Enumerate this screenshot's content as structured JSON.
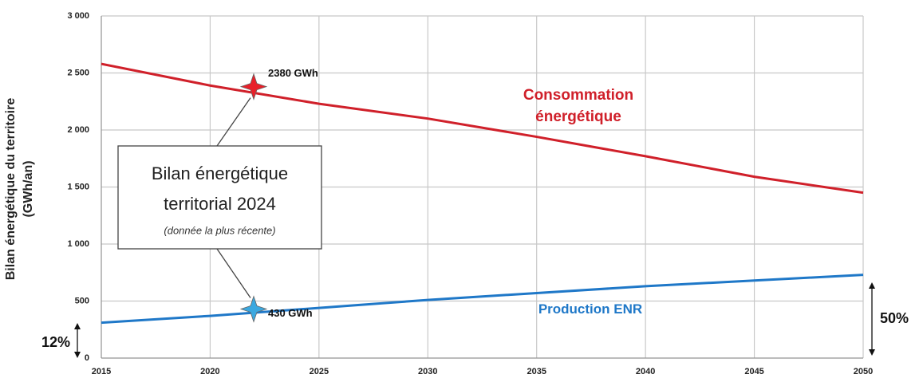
{
  "chart_data": {
    "type": "line",
    "ylabel": "Bilan énergétique du territoire (GWh/an)",
    "x": [
      2015,
      2020,
      2025,
      2030,
      2035,
      2040,
      2045,
      2050
    ],
    "series": [
      {
        "name": "Consommation énergétique",
        "color": "#d0202a",
        "values": [
          2580,
          2390,
          2230,
          2100,
          1940,
          1770,
          1590,
          1450
        ]
      },
      {
        "name": "Production ENR",
        "color": "#1f78c8",
        "values": [
          310,
          370,
          440,
          510,
          570,
          630,
          680,
          730
        ]
      }
    ],
    "xlim": [
      2015,
      2050
    ],
    "xticks": [
      2015,
      2020,
      2025,
      2030,
      2035,
      2040,
      2045,
      2050
    ],
    "ylim": [
      0,
      3000
    ],
    "yticks": [
      0,
      500,
      {
        "value": 1000,
        "label": "1 000"
      },
      {
        "value": 1500,
        "label": "1 500"
      },
      {
        "value": 2000,
        "label": "2 000"
      },
      {
        "value": 2500,
        "label": "2 500"
      },
      {
        "value": 3000,
        "label": "3 000"
      }
    ],
    "grid": true,
    "annotations": [
      {
        "text": "2380 GWh",
        "x": 2022,
        "y": 2380,
        "color": "#e8202a"
      },
      {
        "text": "430 GWh",
        "x": 2022,
        "y": 430,
        "color": "#3aa8e0"
      }
    ],
    "box": {
      "lines": [
        "Bilan énergétique",
        "territorial 2024"
      ],
      "note": "(donnée la plus récente)"
    },
    "side_labels": [
      "12%",
      "50%"
    ]
  }
}
